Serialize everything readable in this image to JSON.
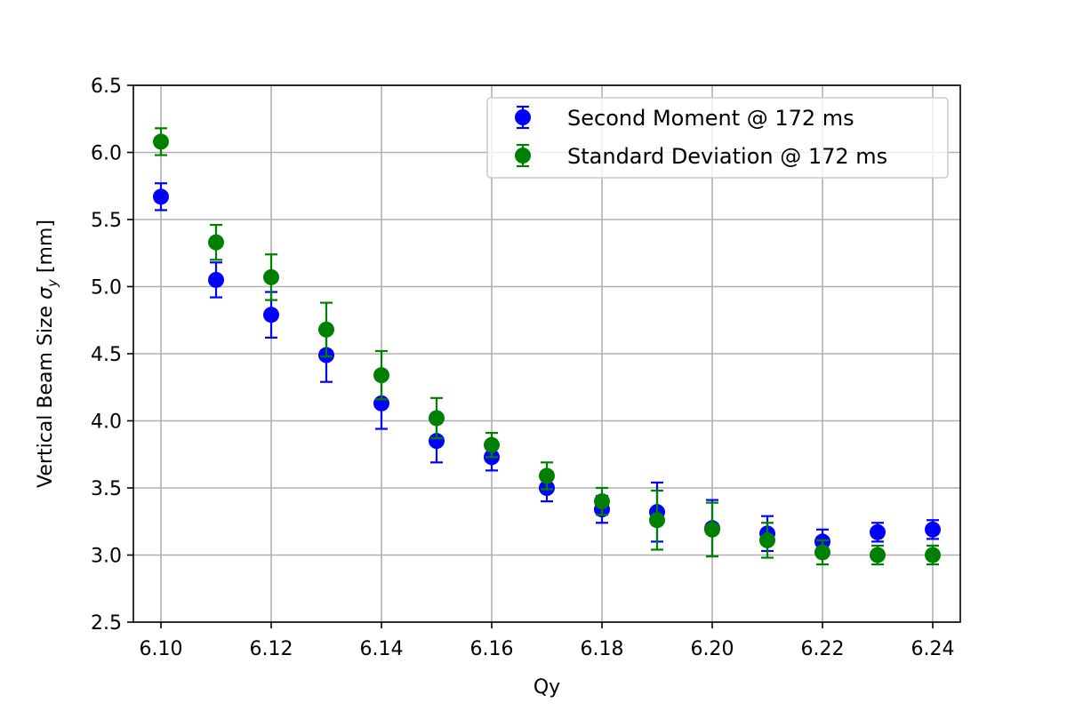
{
  "chart_data": {
    "type": "scatter",
    "xlabel": "Qy",
    "ylabel_prefix": "Vertical Beam Size ",
    "ylabel_symbol": "σ",
    "ylabel_subscript": "y",
    "ylabel_suffix": " [mm]",
    "xlim": [
      6.095,
      6.245
    ],
    "ylim": [
      2.5,
      6.5
    ],
    "x_ticks": [
      6.1,
      6.12,
      6.14,
      6.16,
      6.18,
      6.2,
      6.22,
      6.24
    ],
    "x_tick_labels": [
      "6.10",
      "6.12",
      "6.14",
      "6.16",
      "6.18",
      "6.20",
      "6.22",
      "6.24"
    ],
    "y_ticks": [
      2.5,
      3.0,
      3.5,
      4.0,
      4.5,
      5.0,
      5.5,
      6.0,
      6.5
    ],
    "y_tick_labels": [
      "2.5",
      "3.0",
      "3.5",
      "4.0",
      "4.5",
      "5.0",
      "5.5",
      "6.0",
      "6.5"
    ],
    "grid": true,
    "legend_position": "top-right",
    "x": [
      6.1,
      6.11,
      6.12,
      6.13,
      6.14,
      6.15,
      6.16,
      6.17,
      6.18,
      6.19,
      6.2,
      6.21,
      6.22,
      6.23,
      6.24
    ],
    "series": [
      {
        "name": "Second Moment @ 172 ms",
        "color": "#0000ff",
        "values": [
          5.67,
          5.05,
          4.79,
          4.49,
          4.13,
          3.85,
          3.73,
          3.5,
          3.34,
          3.32,
          3.2,
          3.16,
          3.1,
          3.17,
          3.19
        ],
        "errors": [
          0.1,
          0.13,
          0.17,
          0.2,
          0.19,
          0.16,
          0.1,
          0.1,
          0.1,
          0.22,
          0.21,
          0.13,
          0.09,
          0.07,
          0.07
        ]
      },
      {
        "name": "Standard Deviation @ 172 ms",
        "color": "#008000",
        "values": [
          6.08,
          5.33,
          5.07,
          4.68,
          4.34,
          4.02,
          3.82,
          3.59,
          3.4,
          3.26,
          3.19,
          3.11,
          3.02,
          3.0,
          3.0
        ],
        "errors": [
          0.1,
          0.13,
          0.17,
          0.2,
          0.18,
          0.15,
          0.09,
          0.1,
          0.1,
          0.22,
          0.2,
          0.13,
          0.09,
          0.07,
          0.07
        ]
      }
    ]
  }
}
